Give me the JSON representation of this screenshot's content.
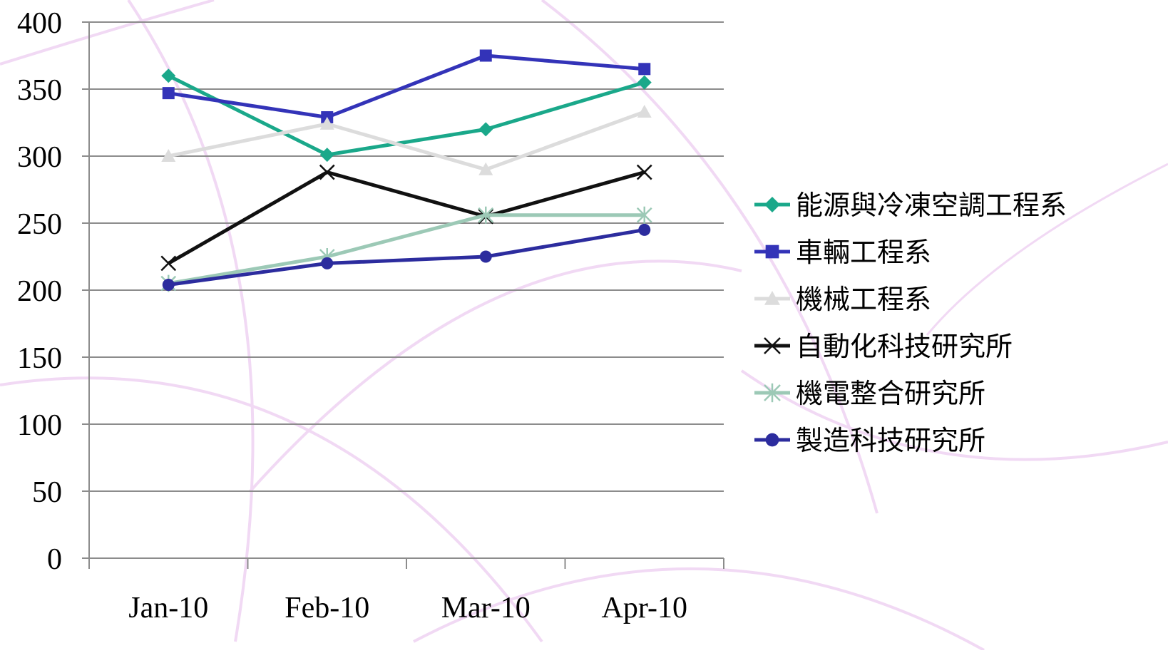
{
  "chart_data": {
    "type": "line",
    "title": "",
    "xlabel": "",
    "ylabel": "",
    "categories": [
      "Jan-10",
      "Feb-10",
      "Mar-10",
      "Apr-10"
    ],
    "ylim": [
      0,
      400
    ],
    "yticks": [
      "0",
      "50",
      "100",
      "150",
      "200",
      "250",
      "300",
      "350",
      "400"
    ],
    "grid": "horizontal",
    "legend_position": "right",
    "series": [
      {
        "name": "能源與冷凍空調工程系",
        "values": [
          360,
          301,
          320,
          355
        ],
        "color": "#1aa88a",
        "marker": "diamond"
      },
      {
        "name": "車輛工程系",
        "values": [
          347,
          329,
          375,
          365
        ],
        "color": "#3333b8",
        "marker": "square"
      },
      {
        "name": "機械工程系",
        "values": [
          300,
          324,
          290,
          333
        ],
        "color": "#dcdcdc",
        "marker": "triangle"
      },
      {
        "name": "自動化科技研究所",
        "values": [
          220,
          288,
          255,
          288
        ],
        "color": "#111111",
        "marker": "x"
      },
      {
        "name": "機電整合研究所",
        "values": [
          205,
          225,
          256,
          256
        ],
        "color": "#9cc9b6",
        "marker": "star"
      },
      {
        "name": "製造科技研究所",
        "values": [
          204,
          220,
          225,
          245
        ],
        "color": "#2c2c9e",
        "marker": "circle"
      }
    ]
  }
}
